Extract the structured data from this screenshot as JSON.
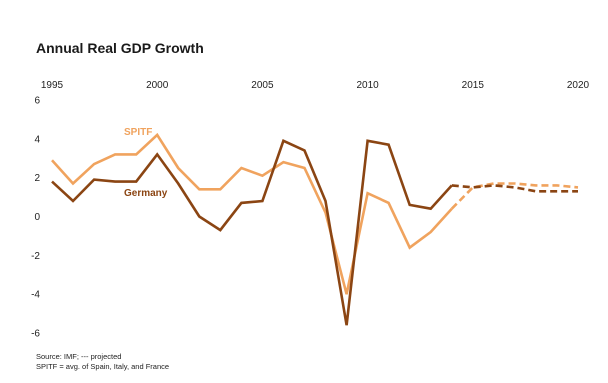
{
  "title": "Annual Real GDP Growth",
  "source_line1": "Source:  IMF; --- projected",
  "source_line2": "SPITF = avg. of Spain, Italy, and France",
  "chart_data": {
    "type": "line",
    "title": "Annual Real GDP Growth",
    "x": [
      1995,
      1996,
      1997,
      1998,
      1999,
      2000,
      2001,
      2002,
      2003,
      2004,
      2005,
      2006,
      2007,
      2008,
      2009,
      2010,
      2011,
      2012,
      2013,
      2014,
      2015,
      2016,
      2017,
      2018,
      2019,
      2020
    ],
    "xticks": [
      1995,
      2000,
      2005,
      2010,
      2015,
      2020
    ],
    "yticks": [
      6,
      4,
      2,
      0,
      -2,
      -4,
      -6
    ],
    "xlim": [
      1995,
      2020
    ],
    "ylim": [
      -6,
      6
    ],
    "grid": false,
    "projection_start": 2014,
    "series": [
      {
        "name": "SPITF",
        "color": "#f0a35e",
        "values": [
          2.9,
          1.7,
          2.7,
          3.2,
          3.2,
          4.2,
          2.5,
          1.4,
          1.4,
          2.5,
          2.1,
          2.8,
          2.5,
          0.2,
          -4.0,
          1.2,
          0.7,
          -1.6,
          -0.8,
          0.4,
          1.5,
          1.7,
          1.7,
          1.6,
          1.6,
          1.5
        ]
      },
      {
        "name": "Germany",
        "color": "#8b4513",
        "values": [
          1.8,
          0.8,
          1.9,
          1.8,
          1.8,
          3.2,
          1.7,
          0.0,
          -0.7,
          0.7,
          0.8,
          3.9,
          3.4,
          0.8,
          -5.6,
          3.9,
          3.7,
          0.6,
          0.4,
          1.6,
          1.5,
          1.6,
          1.5,
          1.3,
          1.3,
          1.3
        ]
      }
    ]
  }
}
